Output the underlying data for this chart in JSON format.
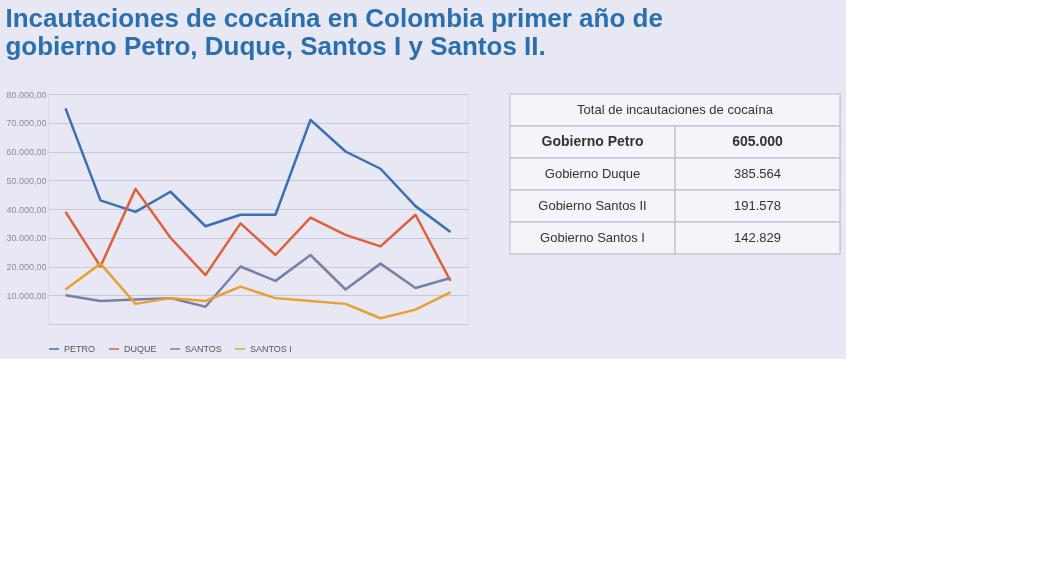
{
  "chart_data": [
    {
      "type": "line",
      "title": "Incautaciones de cocaína en Colombia primer año de gobierno Petro, Duque, Santos I y Santos II.",
      "categories": [
        null,
        null,
        null,
        null,
        null,
        null,
        null,
        null,
        null,
        null,
        null,
        null
      ],
      "series": [
        {
          "name": "PETRO",
          "color": "#3a6fb8",
          "values": [
            75000,
            43000,
            39000,
            46000,
            34000,
            38000,
            38000,
            71000,
            60000,
            54000,
            41000,
            32000
          ]
        },
        {
          "name": "DUQUE",
          "color": "#e0603a",
          "values": [
            39000,
            20000,
            47000,
            30000,
            17000,
            35000,
            24000,
            37000,
            31000,
            27000,
            38000,
            15000
          ]
        },
        {
          "name": "SANTOS",
          "color": "#7a7fa8",
          "values": [
            10000,
            8000,
            8500,
            9000,
            6000,
            20000,
            15000,
            24000,
            12000,
            21000,
            12500,
            16000
          ]
        },
        {
          "name": "SANTOS I",
          "color": "#e8a030",
          "values": [
            12000,
            21000,
            7000,
            9000,
            8000,
            13000,
            9000,
            8000,
            7000,
            2000,
            5000,
            11000
          ]
        }
      ],
      "ylim": [
        0,
        80000
      ],
      "yticks": [
        {
          "value": 0,
          "label": null
        },
        {
          "value": 10000,
          "label": "10.000,00"
        },
        {
          "value": 20000,
          "label": "20.000,00"
        },
        {
          "value": 30000,
          "label": "30.000,00"
        },
        {
          "value": 40000,
          "label": "40.000,00"
        },
        {
          "value": 50000,
          "label": "50.000,00"
        },
        {
          "value": 60000,
          "label": "60.000,00"
        },
        {
          "value": 70000,
          "label": "70.000,00"
        },
        {
          "value": 80000,
          "label": "80.000,00"
        }
      ],
      "grid": "y",
      "legend": "bottom",
      "tick_labels": "y",
      "marker": "none",
      "line_style": "solid"
    },
    {
      "type": "other",
      "title": "Total de incautaciones de cocaína",
      "annotations": [
        "Gobierno Petro",
        "605.000",
        "Gobierno Duque",
        "385.564",
        "Gobierno Santos II",
        "191.578",
        "Gobierno Santos I",
        "142.829"
      ]
    }
  ]
}
